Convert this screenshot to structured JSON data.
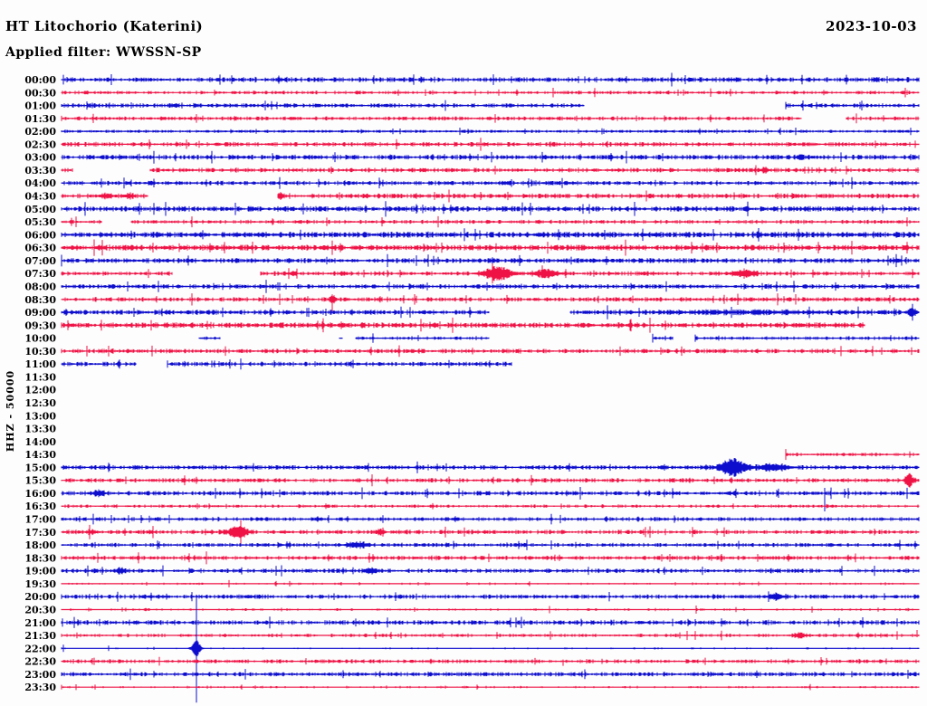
{
  "header": {
    "title": "HT Litochorio (Katerini)",
    "date": "2023-10-03",
    "filter": "Applied filter: WWSSN-SP"
  },
  "chart_data": {
    "type": "line",
    "kind": "helicorder-seismogram",
    "title": "HT Litochorio (Katerini)",
    "date": "2023-10-03",
    "filter": "WWSSN-SP",
    "ylabel": "HHZ - 50000",
    "minutes_per_row": 30,
    "palette": {
      "blue": "#0d0dcd",
      "red": "#ef1245"
    },
    "rows": [
      {
        "time": "00:00",
        "color": "blue",
        "amp": 2.2,
        "dens": 0.75,
        "segments": [
          [
            0,
            1
          ]
        ],
        "events": [],
        "spikes": []
      },
      {
        "time": "00:30",
        "color": "red",
        "amp": 1.6,
        "dens": 0.6,
        "segments": [
          [
            0,
            1
          ]
        ],
        "events": [],
        "spikes": []
      },
      {
        "time": "01:00",
        "color": "blue",
        "amp": 2.0,
        "dens": 0.7,
        "segments": [
          [
            0,
            0.609
          ],
          [
            0.845,
            1
          ]
        ],
        "events": [],
        "spikes": [
          {
            "f": 0.845,
            "up": 4,
            "down": 4
          }
        ]
      },
      {
        "time": "01:30",
        "color": "red",
        "amp": 1.8,
        "dens": 0.7,
        "segments": [
          [
            0,
            0.863
          ],
          [
            0.916,
            1
          ]
        ],
        "events": [],
        "spikes": []
      },
      {
        "time": "02:00",
        "color": "blue",
        "amp": 1.3,
        "dens": 0.95,
        "segments": [
          [
            0,
            1
          ]
        ],
        "events": [],
        "spikes": []
      },
      {
        "time": "02:30",
        "color": "red",
        "amp": 2.0,
        "dens": 0.7,
        "segments": [
          [
            0,
            1
          ]
        ],
        "events": [],
        "spikes": []
      },
      {
        "time": "03:00",
        "color": "blue",
        "amp": 2.2,
        "dens": 0.75,
        "segments": [
          [
            0,
            1
          ]
        ],
        "events": [
          {
            "f": 0.861,
            "w": 6,
            "amp": 2.5
          }
        ],
        "spikes": []
      },
      {
        "time": "03:30",
        "color": "red",
        "amp": 2.0,
        "dens": 0.7,
        "segments": [
          [
            0,
            0.013
          ],
          [
            0.103,
            1
          ]
        ],
        "events": [
          {
            "f": 0.82,
            "w": 6,
            "amp": 2.5
          }
        ],
        "spikes": []
      },
      {
        "time": "04:00",
        "color": "blue",
        "amp": 2.0,
        "dens": 0.75,
        "segments": [
          [
            0,
            1
          ]
        ],
        "events": [],
        "spikes": []
      },
      {
        "time": "04:30",
        "color": "red",
        "amp": 2.2,
        "dens": 0.75,
        "segments": [
          [
            0,
            0.1
          ],
          [
            0.252,
            1
          ]
        ],
        "events": [
          {
            "f": 0.052,
            "w": 8,
            "amp": 2.5
          },
          {
            "f": 0.078,
            "w": 6,
            "amp": 2.5
          },
          {
            "f": 0.256,
            "w": 6,
            "amp": 2
          }
        ],
        "spikes": []
      },
      {
        "time": "05:00",
        "color": "blue",
        "amp": 2.4,
        "dens": 0.8,
        "segments": [
          [
            0,
            1
          ]
        ],
        "events": [],
        "spikes": []
      },
      {
        "time": "05:30",
        "color": "red",
        "amp": 1.8,
        "dens": 0.6,
        "segments": [
          [
            0,
            0.046
          ],
          [
            0.081,
            1
          ]
        ],
        "events": [],
        "spikes": [
          {
            "f": 0.152,
            "up": 6,
            "down": 6
          },
          {
            "f": 0.986,
            "up": 5,
            "down": 5
          }
        ]
      },
      {
        "time": "06:00",
        "color": "blue",
        "amp": 2.6,
        "dens": 0.85,
        "segments": [
          [
            0,
            1
          ]
        ],
        "events": [],
        "spikes": []
      },
      {
        "time": "06:30",
        "color": "red",
        "amp": 2.6,
        "dens": 0.85,
        "segments": [
          [
            0,
            1
          ]
        ],
        "events": [],
        "spikes": []
      },
      {
        "time": "07:00",
        "color": "blue",
        "amp": 2.2,
        "dens": 0.8,
        "segments": [
          [
            0,
            1
          ]
        ],
        "events": [],
        "spikes": []
      },
      {
        "time": "07:30",
        "color": "red",
        "amp": 2.0,
        "dens": 0.7,
        "segments": [
          [
            0,
            0.129
          ],
          [
            0.232,
            1
          ]
        ],
        "events": [
          {
            "f": 0.509,
            "w": 20,
            "amp": 8
          },
          {
            "f": 0.565,
            "w": 18,
            "amp": 4
          },
          {
            "f": 0.796,
            "w": 16,
            "amp": 3.5
          }
        ],
        "spikes": [
          {
            "f": 0.503,
            "up": 11,
            "down": 11
          },
          {
            "f": 0.561,
            "up": 9,
            "down": 5
          }
        ]
      },
      {
        "time": "08:00",
        "color": "blue",
        "amp": 2.0,
        "dens": 0.75,
        "segments": [
          [
            0,
            1
          ]
        ],
        "events": [],
        "spikes": []
      },
      {
        "time": "08:30",
        "color": "red",
        "amp": 2.0,
        "dens": 0.7,
        "segments": [
          [
            0,
            1
          ]
        ],
        "events": [
          {
            "f": 0.316,
            "w": 4,
            "amp": 5
          }
        ],
        "spikes": [
          {
            "f": 0.316,
            "up": 4,
            "down": 13
          }
        ]
      },
      {
        "time": "09:00",
        "color": "blue",
        "amp": 2.2,
        "dens": 0.8,
        "segments": [
          [
            0,
            0.498
          ],
          [
            0.593,
            1
          ]
        ],
        "events": [
          {
            "f": 0.8,
            "w": 120,
            "amp": 0.8
          },
          {
            "f": 0.992,
            "w": 6,
            "amp": 4
          }
        ],
        "spikes": []
      },
      {
        "time": "09:30",
        "color": "red",
        "amp": 2.4,
        "dens": 0.85,
        "segments": [
          [
            0,
            0.937
          ]
        ],
        "events": [],
        "spikes": []
      },
      {
        "time": "10:00",
        "color": "blue",
        "amp": 1.6,
        "dens": 0.6,
        "segments": [
          [
            0.16,
            0.185
          ],
          [
            0.324,
            0.327
          ],
          [
            0.343,
            0.498
          ],
          [
            0.69,
            0.713
          ],
          [
            0.739,
            1
          ]
        ],
        "events": [],
        "spikes": [
          {
            "f": 0.739,
            "up": 4,
            "down": 4
          }
        ]
      },
      {
        "time": "10:30",
        "color": "red",
        "amp": 2.0,
        "dens": 0.7,
        "segments": [
          [
            0,
            1
          ]
        ],
        "events": [],
        "spikes": []
      },
      {
        "time": "11:00",
        "color": "blue",
        "amp": 2.0,
        "dens": 0.7,
        "segments": [
          [
            0,
            0.087
          ],
          [
            0.124,
            0.525
          ]
        ],
        "events": [],
        "spikes": [
          {
            "f": 0.124,
            "up": 4,
            "down": 4
          }
        ]
      },
      {
        "time": "11:30",
        "color": "red",
        "amp": 0,
        "dens": 0,
        "segments": [],
        "events": [],
        "spikes": []
      },
      {
        "time": "12:00",
        "color": "blue",
        "amp": 0,
        "dens": 0,
        "segments": [],
        "events": [],
        "spikes": []
      },
      {
        "time": "12:30",
        "color": "red",
        "amp": 0,
        "dens": 0,
        "segments": [],
        "events": [],
        "spikes": []
      },
      {
        "time": "13:00",
        "color": "blue",
        "amp": 0,
        "dens": 0,
        "segments": [],
        "events": [],
        "spikes": []
      },
      {
        "time": "13:30",
        "color": "red",
        "amp": 0,
        "dens": 0,
        "segments": [],
        "events": [],
        "spikes": []
      },
      {
        "time": "14:00",
        "color": "blue",
        "amp": 0,
        "dens": 0,
        "segments": [],
        "events": [],
        "spikes": []
      },
      {
        "time": "14:30",
        "color": "red",
        "amp": 1.6,
        "dens": 0.6,
        "segments": [
          [
            0.845,
            1
          ]
        ],
        "events": [],
        "spikes": [
          {
            "f": 0.845,
            "up": 6,
            "down": 6
          }
        ]
      },
      {
        "time": "15:00",
        "color": "blue",
        "amp": 2.0,
        "dens": 0.75,
        "segments": [
          [
            0,
            1
          ]
        ],
        "events": [
          {
            "f": 0.783,
            "w": 18,
            "amp": 10
          },
          {
            "f": 0.83,
            "w": 25,
            "amp": 3
          }
        ],
        "spikes": []
      },
      {
        "time": "15:30",
        "color": "red",
        "amp": 2.0,
        "dens": 0.7,
        "segments": [
          [
            0,
            1
          ]
        ],
        "events": [
          {
            "f": 0.989,
            "w": 6,
            "amp": 8
          }
        ],
        "spikes": []
      },
      {
        "time": "16:00",
        "color": "blue",
        "amp": 2.0,
        "dens": 0.7,
        "segments": [
          [
            0,
            1
          ]
        ],
        "events": [
          {
            "f": 0.044,
            "w": 8,
            "amp": 2.5
          }
        ],
        "spikes": [
          {
            "f": 0.89,
            "up": 6,
            "down": 20
          }
        ]
      },
      {
        "time": "16:30",
        "color": "red",
        "amp": 1.5,
        "dens": 0.6,
        "segments": [
          [
            0,
            1
          ]
        ],
        "events": [],
        "spikes": []
      },
      {
        "time": "17:00",
        "color": "blue",
        "amp": 1.8,
        "dens": 0.7,
        "segments": [
          [
            0,
            1
          ]
        ],
        "events": [],
        "spikes": []
      },
      {
        "time": "17:30",
        "color": "red",
        "amp": 2.0,
        "dens": 0.7,
        "segments": [
          [
            0,
            1
          ]
        ],
        "events": [
          {
            "f": 0.036,
            "w": 7,
            "amp": 2
          },
          {
            "f": 0.206,
            "w": 14,
            "amp": 6
          },
          {
            "f": 0.372,
            "w": 6,
            "amp": 3
          }
        ],
        "spikes": [
          {
            "f": 0.209,
            "up": 13,
            "down": 13
          }
        ]
      },
      {
        "time": "18:00",
        "color": "blue",
        "amp": 1.8,
        "dens": 0.7,
        "segments": [
          [
            0,
            1
          ]
        ],
        "events": [
          {
            "f": 0.345,
            "w": 14,
            "amp": 3
          }
        ],
        "spikes": [
          {
            "f": 0.153,
            "up": 3,
            "down": 3
          }
        ]
      },
      {
        "time": "18:30",
        "color": "red",
        "amp": 1.9,
        "dens": 0.7,
        "segments": [
          [
            0,
            1
          ]
        ],
        "events": [],
        "spikes": []
      },
      {
        "time": "19:00",
        "color": "blue",
        "amp": 2.0,
        "dens": 0.7,
        "segments": [
          [
            0,
            1
          ]
        ],
        "events": [
          {
            "f": 0.069,
            "w": 9,
            "amp": 2.5
          },
          {
            "f": 0.361,
            "w": 9,
            "amp": 2.5
          }
        ],
        "spikes": []
      },
      {
        "time": "19:30",
        "color": "red",
        "amp": 1.0,
        "dens": 0.3,
        "segments": [
          [
            0,
            1
          ]
        ],
        "events": [],
        "spikes": [
          {
            "f": 0.195,
            "up": 4,
            "down": 4
          },
          {
            "f": 0.25,
            "up": 3,
            "down": 3
          },
          {
            "f": 0.266,
            "up": 3,
            "down": 3
          }
        ]
      },
      {
        "time": "20:00",
        "color": "blue",
        "amp": 2.0,
        "dens": 0.7,
        "segments": [
          [
            0,
            1
          ]
        ],
        "events": [
          {
            "f": 0.833,
            "w": 11,
            "amp": 3
          }
        ],
        "spikes": []
      },
      {
        "time": "20:30",
        "color": "red",
        "amp": 1.2,
        "dens": 0.35,
        "segments": [
          [
            0,
            1
          ]
        ],
        "events": [],
        "spikes": [
          {
            "f": 0.569,
            "up": 4,
            "down": 4
          }
        ]
      },
      {
        "time": "21:00",
        "color": "blue",
        "amp": 2.1,
        "dens": 0.75,
        "segments": [
          [
            0,
            1
          ]
        ],
        "events": [],
        "spikes": []
      },
      {
        "time": "21:30",
        "color": "red",
        "amp": 1.6,
        "dens": 0.55,
        "segments": [
          [
            0,
            1
          ]
        ],
        "events": [
          {
            "f": 0.861,
            "w": 8,
            "amp": 3
          }
        ],
        "spikes": [
          {
            "f": 0.998,
            "up": 6,
            "down": 2
          }
        ]
      },
      {
        "time": "22:00",
        "color": "blue",
        "amp": 0.9,
        "dens": 0.2,
        "segments": [
          [
            0,
            1
          ]
        ],
        "events": [
          {
            "f": 0.157,
            "w": 6,
            "amp": 10
          }
        ],
        "spikes": [
          {
            "f": 0.157,
            "up": 57,
            "down": 60
          },
          {
            "f": 0.002,
            "up": 4,
            "down": 4
          },
          {
            "f": 0.055,
            "up": 3,
            "down": 3
          }
        ]
      },
      {
        "time": "22:30",
        "color": "red",
        "amp": 1.7,
        "dens": 0.6,
        "segments": [
          [
            0,
            1
          ]
        ],
        "events": [],
        "spikes": [
          {
            "f": 0.585,
            "up": 2,
            "down": 5
          }
        ]
      },
      {
        "time": "23:00",
        "color": "blue",
        "amp": 1.9,
        "dens": 0.7,
        "segments": [
          [
            0,
            1
          ]
        ],
        "events": [],
        "spikes": []
      },
      {
        "time": "23:30",
        "color": "red",
        "amp": 1.1,
        "dens": 0.3,
        "segments": [
          [
            0,
            1
          ]
        ],
        "events": [],
        "spikes": []
      }
    ]
  }
}
